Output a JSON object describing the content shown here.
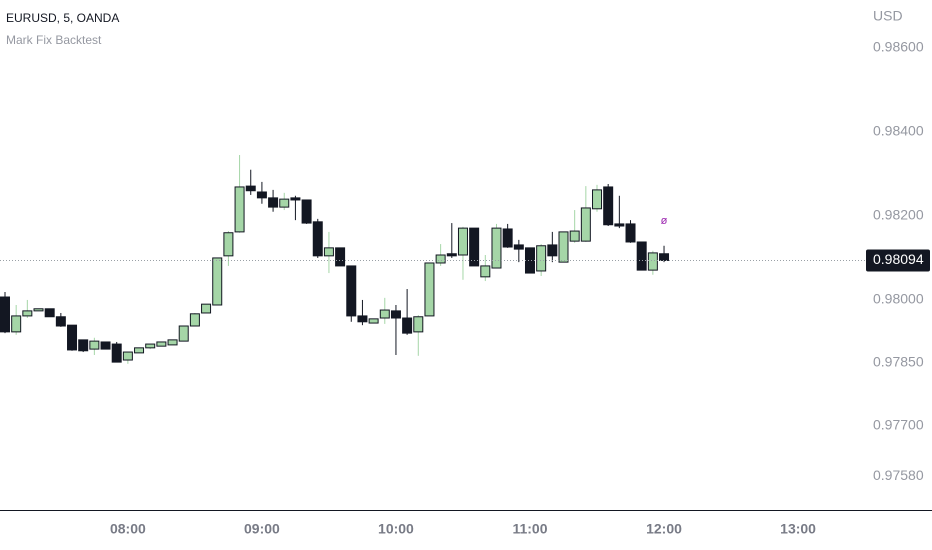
{
  "chart_data": {
    "type": "candlestick",
    "title": "EURUSD, 5, OANDA",
    "subtitle": "Mark Fix Backtest",
    "currency": "USD",
    "annotation": "ø",
    "up_color": "#a5d6a7",
    "down_color": "#131722",
    "categories": [
      null,
      null,
      null,
      null,
      null,
      null,
      null,
      null,
      null,
      null,
      null,
      "08:00",
      null,
      null,
      null,
      null,
      null,
      null,
      null,
      null,
      null,
      null,
      null,
      "09:00",
      null,
      null,
      null,
      null,
      null,
      null,
      null,
      null,
      null,
      null,
      null,
      "10:00",
      null,
      null,
      null,
      null,
      null,
      null,
      null,
      null,
      null,
      null,
      null,
      "11:00",
      null,
      null,
      null,
      null,
      null,
      null,
      null,
      null,
      null,
      null,
      null,
      "12:00",
      null,
      null,
      null,
      null,
      null,
      null,
      null,
      null,
      null,
      null,
      null,
      "13:00"
    ],
    "open": [
      0.98007,
      0.97924,
      0.97962,
      0.97974,
      0.97979,
      0.9796,
      0.9794,
      0.97905,
      0.97883,
      0.979,
      0.97895,
      0.97857,
      0.97874,
      0.97886,
      0.9789,
      0.97893,
      0.97902,
      0.97938,
      0.97969,
      0.97988,
      0.98105,
      0.98162,
      0.98271,
      0.98257,
      0.98243,
      0.98221,
      0.98243,
      0.98238,
      0.98186,
      0.98105,
      0.98124,
      0.98081,
      0.97962,
      0.97945,
      0.97957,
      0.97974,
      0.97957,
      0.97924,
      0.97962,
      0.98088,
      0.9811,
      0.98107,
      0.98171,
      0.98055,
      0.98076,
      0.98169,
      0.98131,
      0.98124,
      0.98069,
      0.98131,
      0.9809,
      0.9814,
      0.9814,
      0.98217,
      0.98269,
      0.98181,
      0.98181,
      0.98138,
      0.98071,
      0.9811,
      null,
      null,
      null,
      null,
      null,
      null,
      null,
      null,
      null,
      null,
      null,
      null
    ],
    "high": [
      0.98019,
      0.97988,
      0.98,
      0.97979,
      0.97979,
      0.97969,
      0.9794,
      0.97905,
      0.9791,
      0.979,
      0.979,
      0.97876,
      0.97886,
      0.97895,
      0.979,
      0.97905,
      0.97938,
      0.97969,
      0.9799,
      0.981,
      0.98164,
      0.98345,
      0.9831,
      0.98281,
      0.98262,
      0.98255,
      0.98248,
      0.98238,
      0.98193,
      0.98162,
      0.98124,
      0.98081,
      0.98,
      0.97955,
      0.98005,
      0.97988,
      0.98026,
      0.97964,
      0.98088,
      0.98133,
      0.98183,
      0.98174,
      0.98171,
      0.98107,
      0.98181,
      0.98181,
      0.98143,
      0.98124,
      0.98133,
      0.98162,
      0.98162,
      0.98214,
      0.98271,
      0.98274,
      0.98276,
      0.98248,
      0.9819,
      0.98138,
      0.98117,
      0.98129,
      null,
      null,
      null,
      null,
      null,
      null,
      null,
      null,
      null,
      null,
      null,
      null
    ],
    "low": [
      0.97921,
      0.97917,
      0.97957,
      0.97974,
      0.9796,
      0.97936,
      0.97879,
      0.97876,
      0.97869,
      0.97883,
      0.97852,
      0.97848,
      0.97874,
      0.97883,
      0.9789,
      0.97893,
      0.97902,
      0.97938,
      0.97969,
      0.97988,
      0.98081,
      0.9816,
      0.9825,
      0.98229,
      0.9821,
      0.98214,
      0.9819,
      0.98181,
      0.981,
      0.98064,
      0.98081,
      0.97948,
      0.9794,
      0.97945,
      0.97943,
      0.97869,
      0.97917,
      0.97867,
      0.97962,
      0.98081,
      0.981,
      0.98048,
      0.98081,
      0.98045,
      0.98076,
      0.98124,
      0.9809,
      0.98064,
      0.98057,
      0.9809,
      0.9809,
      0.98136,
      0.98138,
      0.9821,
      0.98176,
      0.98171,
      0.98136,
      0.98071,
      0.9806,
      0.9809,
      null,
      null,
      null,
      null,
      null,
      null,
      null,
      null,
      null,
      null,
      null,
      null
    ],
    "close": [
      0.97924,
      0.97962,
      0.97974,
      0.97979,
      0.9796,
      0.97938,
      0.97881,
      0.97879,
      0.97902,
      0.97883,
      0.97852,
      0.97876,
      0.97886,
      0.97895,
      0.979,
      0.97905,
      0.97938,
      0.97967,
      0.9799,
      0.981,
      0.9816,
      0.98269,
      0.9826,
      0.98243,
      0.98221,
      0.9824,
      0.98238,
      0.98183,
      0.98105,
      0.98124,
      0.98081,
      0.97962,
      0.97948,
      0.97955,
      0.97976,
      0.97957,
      0.97921,
      0.9796,
      0.98088,
      0.98107,
      0.98105,
      0.98171,
      0.98081,
      0.98081,
      0.98171,
      0.98126,
      0.98121,
      0.98064,
      0.98129,
      0.98105,
      0.98162,
      0.98164,
      0.98219,
      0.98262,
      0.98179,
      0.98176,
      0.98138,
      0.98071,
      0.98112,
      0.98094,
      null,
      null,
      null,
      null,
      null,
      null,
      null,
      null,
      null,
      null,
      null,
      null
    ],
    "last_price": {
      "value": 0.98094,
      "label": "0.98094"
    },
    "ylim": [
      0.975,
      0.98714
    ],
    "yticks": [
      {
        "value": 0.986,
        "label": "0.98600"
      },
      {
        "value": 0.984,
        "label": "0.98400"
      },
      {
        "value": 0.982,
        "label": "0.98200"
      },
      {
        "value": 0.98,
        "label": "0.98000"
      },
      {
        "value": 0.9785,
        "label": "0.97850"
      },
      {
        "value": 0.977,
        "label": "0.97700"
      },
      {
        "value": 0.9758,
        "label": "0.97580"
      }
    ]
  }
}
